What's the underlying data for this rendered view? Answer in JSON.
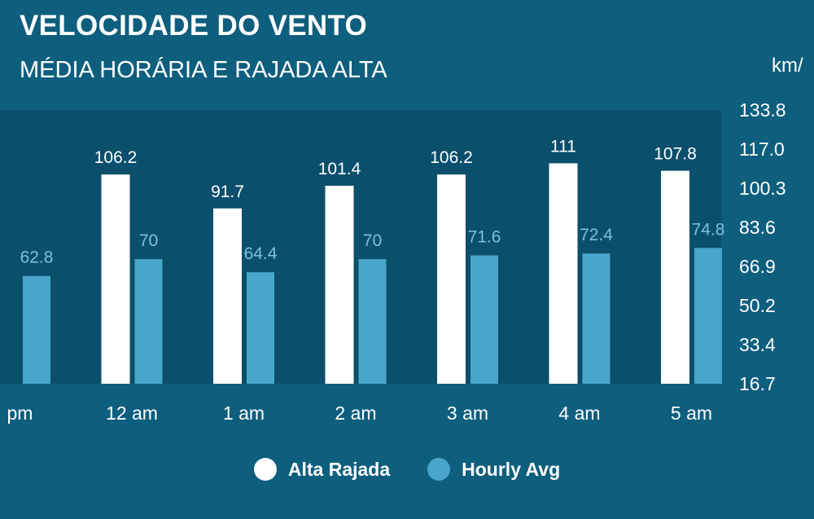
{
  "header": {
    "title": "VELOCIDADE DO VENTO",
    "subtitle": "MÉDIA HORÁRIA E RAJADA ALTA"
  },
  "colors": {
    "background": "#0e5e7e",
    "plot_area": "#0a4f6c",
    "gust_bar": "#ffffff",
    "avg_bar": "#4aa5cb",
    "gust_label": "#ffffff",
    "avg_label": "#7cc0e0",
    "axis_text": "#ffffff"
  },
  "chart_data": {
    "type": "bar",
    "unit_label": "km/",
    "categories": [
      "pm",
      "12 am",
      "1 am",
      "2 am",
      "3 am",
      "4 am",
      "5 am"
    ],
    "series": [
      {
        "name": "Alta Rajada",
        "values": [
          null,
          106.2,
          91.7,
          101.4,
          106.2,
          111,
          107.8
        ],
        "labels": [
          "",
          "106.2",
          "91.7",
          "101.4",
          "106.2",
          "111",
          "107.8"
        ]
      },
      {
        "name": "Hourly Avg",
        "values": [
          62.8,
          70,
          64.4,
          70,
          71.6,
          72.4,
          74.8
        ],
        "labels": [
          "62.8",
          "70",
          "64.4",
          "70",
          "71.6",
          "72.4",
          "74.8"
        ]
      }
    ],
    "y_ticks": [
      "133.8",
      "117.0",
      "100.3",
      "83.6",
      "66.9",
      "50.2",
      "33.4",
      "16.7"
    ],
    "ylim": [
      16.7,
      133.8
    ],
    "y_axis_position": "right",
    "grid": false,
    "legend_position": "bottom-center"
  }
}
